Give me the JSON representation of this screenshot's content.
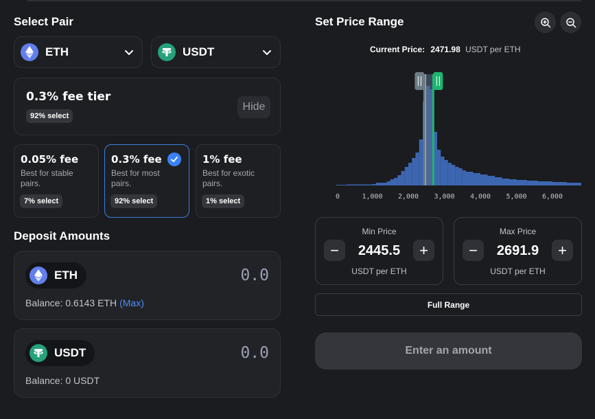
{
  "select_pair": {
    "title": "Select Pair",
    "token_a": {
      "symbol": "ETH",
      "icon": "eth-icon"
    },
    "token_b": {
      "symbol": "USDT",
      "icon": "usdt-icon"
    }
  },
  "fee_tier": {
    "current": "0.3% fee tier",
    "current_select": "92% select",
    "hide_label": "Hide",
    "options": [
      {
        "fee": "0.05% fee",
        "desc": "Best for stable pairs.",
        "select": "7% select",
        "selected": false
      },
      {
        "fee": "0.3% fee",
        "desc": "Best for most pairs.",
        "select": "92% select",
        "selected": true
      },
      {
        "fee": "1% fee",
        "desc": "Best for exotic pairs.",
        "select": "1% select",
        "selected": false
      }
    ]
  },
  "deposit": {
    "title": "Deposit Amounts",
    "eth": {
      "symbol": "ETH",
      "amount": "0.0",
      "balance": "Balance: 0.6143 ETH",
      "max_label": "(Max)"
    },
    "usdt": {
      "symbol": "USDT",
      "amount": "0.0",
      "balance": "Balance: 0 USDT"
    }
  },
  "price_range": {
    "title": "Set Price Range",
    "zoom_in_icon": "zoom-in-icon",
    "zoom_out_icon": "zoom-out-icon",
    "current_price_label": "Current Price:",
    "current_price_value": "2471.98",
    "current_price_unit": "USDT per ETH",
    "min": {
      "label": "Min Price",
      "value": "2445.5",
      "unit": "USDT per ETH"
    },
    "max": {
      "label": "Max Price",
      "value": "2691.9",
      "unit": "USDT per ETH"
    },
    "full_range_label": "Full Range",
    "submit_label": "Enter an amount",
    "colors": {
      "bars": "#3d66b0",
      "selected_range": "#5a6a86",
      "min_handle": "#6b7d84",
      "max_handle": "#1db56f",
      "current_line": "#bfc6d6"
    }
  },
  "chart_data": {
    "type": "bar",
    "xlabel": "",
    "ylabel": "",
    "x_ticks": [
      "0",
      "1,000",
      "2,000",
      "3,000",
      "4,000",
      "5,000",
      "6,000"
    ],
    "xlim": [
      0,
      6800
    ],
    "current_price": 2471.98,
    "min_price": 2445.5,
    "max_price": 2691.9,
    "bins": [
      {
        "x0": 0,
        "x1": 300,
        "h": 1
      },
      {
        "x0": 300,
        "x1": 1000,
        "h": 1.5
      },
      {
        "x0": 1000,
        "x1": 1100,
        "h": 2
      },
      {
        "x0": 1100,
        "x1": 1400,
        "h": 4
      },
      {
        "x0": 1400,
        "x1": 1500,
        "h": 6
      },
      {
        "x0": 1500,
        "x1": 1600,
        "h": 9
      },
      {
        "x0": 1600,
        "x1": 1700,
        "h": 11
      },
      {
        "x0": 1700,
        "x1": 1800,
        "h": 15
      },
      {
        "x0": 1800,
        "x1": 1900,
        "h": 21
      },
      {
        "x0": 1900,
        "x1": 2000,
        "h": 27
      },
      {
        "x0": 2000,
        "x1": 2100,
        "h": 33
      },
      {
        "x0": 2100,
        "x1": 2200,
        "h": 40
      },
      {
        "x0": 2200,
        "x1": 2300,
        "h": 48
      },
      {
        "x0": 2300,
        "x1": 2400,
        "h": 67
      },
      {
        "x0": 2400,
        "x1": 2500,
        "h": 122
      },
      {
        "x0": 2500,
        "x1": 2600,
        "h": 145
      },
      {
        "x0": 2600,
        "x1": 2700,
        "h": 140
      },
      {
        "x0": 2700,
        "x1": 2800,
        "h": 78
      },
      {
        "x0": 2800,
        "x1": 2900,
        "h": 52
      },
      {
        "x0": 2900,
        "x1": 3000,
        "h": 42
      },
      {
        "x0": 3000,
        "x1": 3100,
        "h": 37
      },
      {
        "x0": 3100,
        "x1": 3200,
        "h": 33
      },
      {
        "x0": 3200,
        "x1": 3300,
        "h": 30
      },
      {
        "x0": 3300,
        "x1": 3400,
        "h": 27
      },
      {
        "x0": 3400,
        "x1": 3500,
        "h": 25
      },
      {
        "x0": 3500,
        "x1": 3600,
        "h": 22
      },
      {
        "x0": 3600,
        "x1": 3800,
        "h": 20
      },
      {
        "x0": 3800,
        "x1": 4000,
        "h": 18
      },
      {
        "x0": 4000,
        "x1": 4200,
        "h": 16
      },
      {
        "x0": 4200,
        "x1": 4400,
        "h": 14
      },
      {
        "x0": 4400,
        "x1": 4600,
        "h": 12
      },
      {
        "x0": 4600,
        "x1": 4800,
        "h": 10
      },
      {
        "x0": 4800,
        "x1": 5000,
        "h": 9
      },
      {
        "x0": 5000,
        "x1": 5300,
        "h": 8
      },
      {
        "x0": 5300,
        "x1": 5600,
        "h": 7
      },
      {
        "x0": 5600,
        "x1": 6000,
        "h": 6
      },
      {
        "x0": 6000,
        "x1": 6400,
        "h": 5
      },
      {
        "x0": 6400,
        "x1": 6800,
        "h": 4
      }
    ]
  }
}
